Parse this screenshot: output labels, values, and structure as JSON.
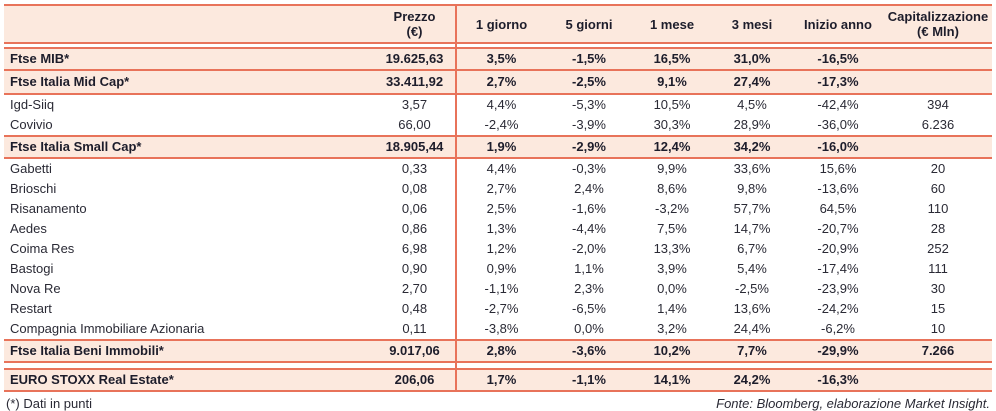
{
  "colors": {
    "accent_border": "#E8735A",
    "row_highlight": "#FCE9DE",
    "text": "#1D1D2B"
  },
  "table": {
    "headers": [
      {
        "line1": "Prezzo",
        "line2": "(€)"
      },
      {
        "line1": "1 giorno",
        "line2": ""
      },
      {
        "line1": "5 giorni",
        "line2": ""
      },
      {
        "line1": "1 mese",
        "line2": ""
      },
      {
        "line1": "3 mesi",
        "line2": ""
      },
      {
        "line1": "Inizio anno",
        "line2": ""
      },
      {
        "line1": "Capitalizzazione",
        "line2": "(€ Mln)"
      }
    ],
    "rows": [
      {
        "name": "Ftse MIB*",
        "type": "index",
        "values": [
          "19.625,63",
          "3,5%",
          "-1,5%",
          "16,5%",
          "31,0%",
          "-16,5%",
          ""
        ]
      },
      {
        "name": "Ftse Italia Mid Cap*",
        "type": "index",
        "values": [
          "33.411,92",
          "2,7%",
          "-2,5%",
          "9,1%",
          "27,4%",
          "-17,3%",
          ""
        ]
      },
      {
        "name": "Igd-Siiq",
        "type": "stock",
        "values": [
          "3,57",
          "4,4%",
          "-5,3%",
          "10,5%",
          "4,5%",
          "-42,4%",
          "394"
        ]
      },
      {
        "name": "Covivio",
        "type": "stock",
        "values": [
          "66,00",
          "-2,4%",
          "-3,9%",
          "30,3%",
          "28,9%",
          "-36,0%",
          "6.236"
        ]
      },
      {
        "name": "Ftse Italia Small Cap*",
        "type": "index",
        "values": [
          "18.905,44",
          "1,9%",
          "-2,9%",
          "12,4%",
          "34,2%",
          "-16,0%",
          ""
        ]
      },
      {
        "name": "Gabetti",
        "type": "stock",
        "values": [
          "0,33",
          "4,4%",
          "-0,3%",
          "9,9%",
          "33,6%",
          "15,6%",
          "20"
        ]
      },
      {
        "name": "Brioschi",
        "type": "stock",
        "values": [
          "0,08",
          "2,7%",
          "2,4%",
          "8,6%",
          "9,8%",
          "-13,6%",
          "60"
        ]
      },
      {
        "name": "Risanamento",
        "type": "stock",
        "values": [
          "0,06",
          "2,5%",
          "-1,6%",
          "-3,2%",
          "57,7%",
          "64,5%",
          "110"
        ]
      },
      {
        "name": "Aedes",
        "type": "stock",
        "values": [
          "0,86",
          "1,3%",
          "-4,4%",
          "7,5%",
          "14,7%",
          "-20,7%",
          "28"
        ]
      },
      {
        "name": "Coima Res",
        "type": "stock",
        "values": [
          "6,98",
          "1,2%",
          "-2,0%",
          "13,3%",
          "6,7%",
          "-20,9%",
          "252"
        ]
      },
      {
        "name": "Bastogi",
        "type": "stock",
        "values": [
          "0,90",
          "0,9%",
          "1,1%",
          "3,9%",
          "5,4%",
          "-17,4%",
          "111"
        ]
      },
      {
        "name": "Nova Re",
        "type": "stock",
        "values": [
          "2,70",
          "-1,1%",
          "2,3%",
          "0,0%",
          "-2,5%",
          "-23,9%",
          "30"
        ]
      },
      {
        "name": "Restart",
        "type": "stock",
        "values": [
          "0,48",
          "-2,7%",
          "-6,5%",
          "1,4%",
          "13,6%",
          "-24,2%",
          "15"
        ]
      },
      {
        "name": "Compagnia Immobiliare Azionaria",
        "type": "stock",
        "values": [
          "0,11",
          "-3,8%",
          "0,0%",
          "3,2%",
          "24,4%",
          "-6,2%",
          "10"
        ]
      },
      {
        "name": "Ftse Italia Beni Immobili*",
        "type": "index",
        "values": [
          "9.017,06",
          "2,8%",
          "-3,6%",
          "10,2%",
          "7,7%",
          "-29,9%",
          "7.266"
        ]
      },
      {
        "name": "EURO STOXX Real Estate*",
        "type": "index",
        "gap_before": true,
        "values": [
          "206,06",
          "1,7%",
          "-1,1%",
          "14,1%",
          "24,2%",
          "-16,3%",
          ""
        ]
      }
    ]
  },
  "footer": {
    "note": "(*) Dati in punti",
    "source": "Fonte: Bloomberg, elaborazione Market Insight."
  }
}
